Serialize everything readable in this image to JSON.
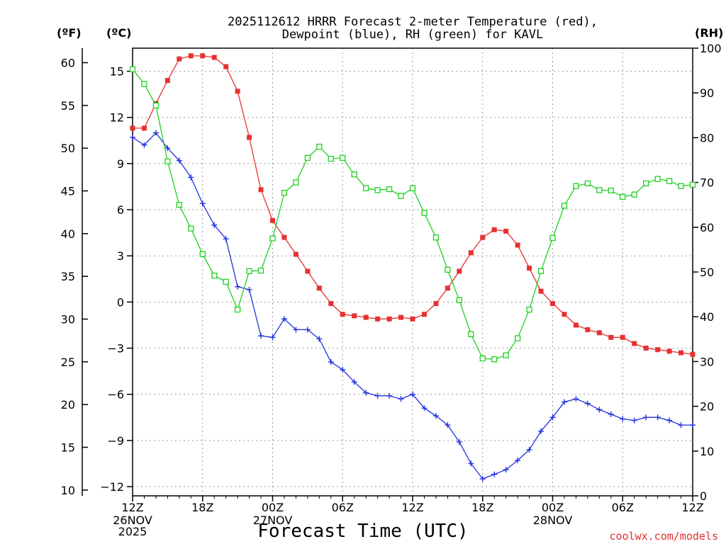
{
  "chart_data": {
    "type": "line",
    "title": "2025112612 HRRR Forecast 2-meter Temperature (red),",
    "subtitle": "Dewpoint (blue), RH (green) for KAVL",
    "xlabel": "Forecast Time (UTC)",
    "credit": "coolwx.com/models",
    "units": {
      "fahrenheit": "(ºF)",
      "celsius": "(ºC)",
      "rh": "(RH)"
    },
    "x_tick_labels": [
      "12Z",
      "18Z",
      "00Z",
      "06Z",
      "12Z",
      "18Z",
      "00Z",
      "06Z",
      "12Z"
    ],
    "x_date_labels": [
      {
        "hour": 0,
        "lines": [
          "26NOV",
          "2025"
        ]
      },
      {
        "hour": 12,
        "lines": [
          "27NOV"
        ]
      },
      {
        "hour": 36,
        "lines": [
          "28NOV"
        ]
      }
    ],
    "x_range_hours": [
      0,
      48
    ],
    "celsius_ticks": [
      "15",
      "12",
      "9",
      "6",
      "3",
      "0",
      "−3",
      "−6",
      "−9",
      "−12"
    ],
    "fahrenheit_ticks": [
      "60",
      "55",
      "50",
      "45",
      "40",
      "35",
      "30",
      "25",
      "20",
      "15",
      "10"
    ],
    "rh_ticks": [
      "100",
      "90",
      "80",
      "70",
      "60",
      "50",
      "40",
      "30",
      "20",
      "10",
      "0"
    ],
    "ylim_celsius": [
      -12.6,
      16.5
    ],
    "ylim_rh": [
      0,
      100
    ],
    "hours": [
      0,
      1,
      2,
      3,
      4,
      5,
      6,
      7,
      8,
      9,
      10,
      11,
      12,
      13,
      14,
      15,
      16,
      17,
      18,
      19,
      20,
      21,
      22,
      23,
      24,
      25,
      26,
      27,
      28,
      29,
      30,
      31,
      32,
      33,
      34,
      35,
      36,
      37,
      38,
      39,
      40,
      41,
      42,
      43,
      44,
      45,
      46,
      47,
      48
    ],
    "series": [
      {
        "name": "2-meter Temperature",
        "unit": "C",
        "color": "#e83030",
        "marker": "filled-square",
        "values": [
          11.3,
          11.3,
          12.9,
          14.4,
          15.8,
          16.0,
          16.0,
          15.9,
          15.3,
          13.7,
          10.7,
          7.3,
          5.3,
          4.2,
          3.1,
          2.0,
          0.9,
          -0.1,
          -0.8,
          -0.9,
          -1.0,
          -1.1,
          -1.1,
          -1.0,
          -1.1,
          -0.8,
          -0.1,
          0.9,
          2.0,
          3.2,
          4.2,
          4.7,
          4.6,
          3.7,
          2.2,
          0.7,
          -0.1,
          -0.8,
          -1.5,
          -1.8,
          -2.0,
          -2.3,
          -2.3,
          -2.7,
          -3.0,
          -3.1,
          -3.2,
          -3.3,
          -3.4
        ]
      },
      {
        "name": "Dewpoint",
        "unit": "C",
        "color": "#2030e0",
        "marker": "plus",
        "values": [
          10.7,
          10.2,
          11.0,
          10.0,
          9.2,
          8.1,
          6.4,
          5.0,
          4.1,
          1.0,
          0.8,
          -2.2,
          -2.3,
          -1.1,
          -1.8,
          -1.8,
          -2.4,
          -3.9,
          -4.4,
          -5.2,
          -5.9,
          -6.1,
          -6.1,
          -6.3,
          -6.0,
          -6.9,
          -7.4,
          -8.0,
          -9.1,
          -10.5,
          -11.5,
          -11.2,
          -10.9,
          -10.3,
          -9.6,
          -8.4,
          -7.5,
          -6.5,
          -6.3,
          -6.6,
          -7.0,
          -7.3,
          -7.6,
          -7.7,
          -7.5,
          -7.5,
          -7.7,
          -8.0,
          -8.0
        ]
      },
      {
        "name": "RH",
        "unit": "%",
        "color": "#20d020",
        "marker": "open-square",
        "values": [
          95.3,
          92.0,
          87.2,
          74.7,
          65.0,
          59.7,
          54.0,
          49.2,
          47.8,
          41.6,
          50.2,
          50.3,
          57.5,
          67.7,
          70.0,
          75.5,
          78.0,
          75.3,
          75.5,
          71.8,
          68.7,
          68.3,
          68.5,
          67.0,
          68.7,
          63.2,
          57.7,
          50.5,
          43.7,
          36.1,
          30.7,
          30.5,
          31.4,
          35.2,
          41.6,
          50.2,
          57.6,
          64.8,
          69.2,
          69.8,
          68.3,
          68.2,
          66.8,
          67.3,
          69.8,
          70.8,
          70.3,
          69.2,
          69.5
        ]
      }
    ]
  }
}
